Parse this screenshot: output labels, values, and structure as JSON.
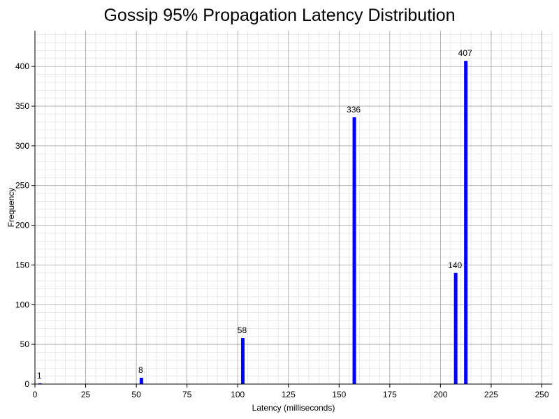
{
  "chart_data": {
    "type": "bar",
    "title": "Gossip 95% Propagation Latency Distribution",
    "xlabel": "Latency (milliseconds)",
    "ylabel": "Frequency",
    "xlim": [
      0,
      255
    ],
    "ylim": [
      0,
      445
    ],
    "x_ticks": [
      0,
      25,
      50,
      75,
      100,
      125,
      150,
      175,
      200,
      225,
      250
    ],
    "y_ticks": [
      0,
      50,
      100,
      150,
      200,
      250,
      300,
      350,
      400
    ],
    "grid": true,
    "bar_color": "#0000ff",
    "bins": [
      {
        "x": 2.5,
        "value": 1
      },
      {
        "x": 52.5,
        "value": 8
      },
      {
        "x": 102.5,
        "value": 58
      },
      {
        "x": 157.5,
        "value": 336
      },
      {
        "x": 207.5,
        "value": 140
      },
      {
        "x": 212.5,
        "value": 407
      }
    ]
  }
}
